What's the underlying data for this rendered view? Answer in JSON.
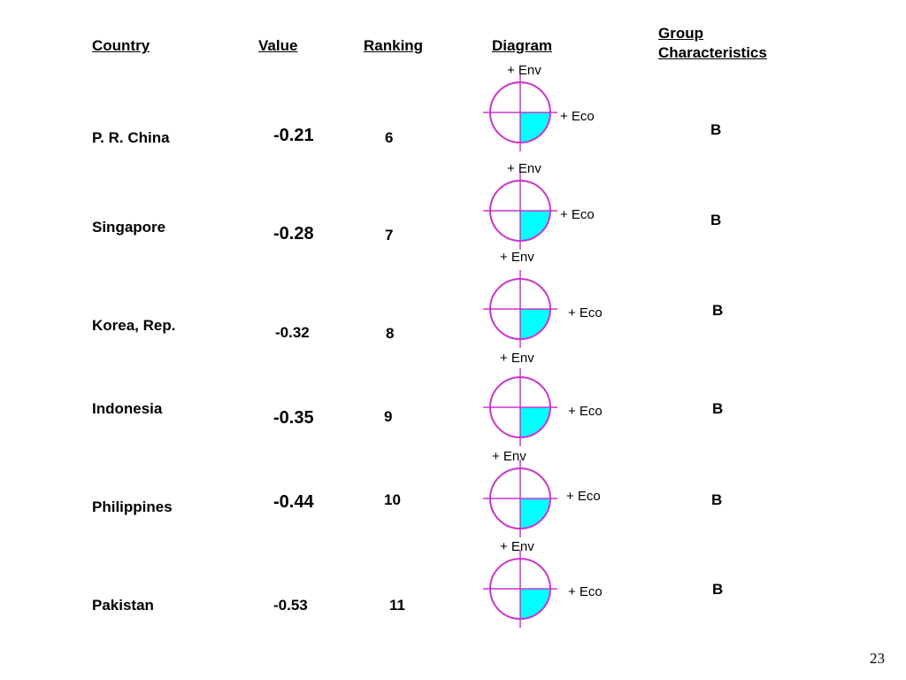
{
  "headers": {
    "country": "Country",
    "value": "Value",
    "ranking": "Ranking",
    "diagram": "Diagram",
    "group_line1": "Group",
    "group_line2": "Characteristics"
  },
  "diagram_labels": {
    "env": "+ Env",
    "eco": "+ Eco"
  },
  "colors": {
    "circle": "#cc33cc",
    "fill": "#00ffff"
  },
  "rows": [
    {
      "country": "P. R. China",
      "value": "-0.21",
      "rank": "6",
      "group": "B"
    },
    {
      "country": "Singapore",
      "value": "-0.28",
      "rank": "7",
      "group": "B"
    },
    {
      "country": "Korea, Rep.",
      "value": "-0.32",
      "rank": "8",
      "group": "B"
    },
    {
      "country": "Indonesia",
      "value": "-0.35",
      "rank": "9",
      "group": "B"
    },
    {
      "country": "Philippines",
      "value": "-0.44",
      "rank": "10",
      "group": "B"
    },
    {
      "country": "Pakistan",
      "value": "-0.53",
      "rank": "11",
      "group": "B"
    }
  ],
  "page_number": "23"
}
